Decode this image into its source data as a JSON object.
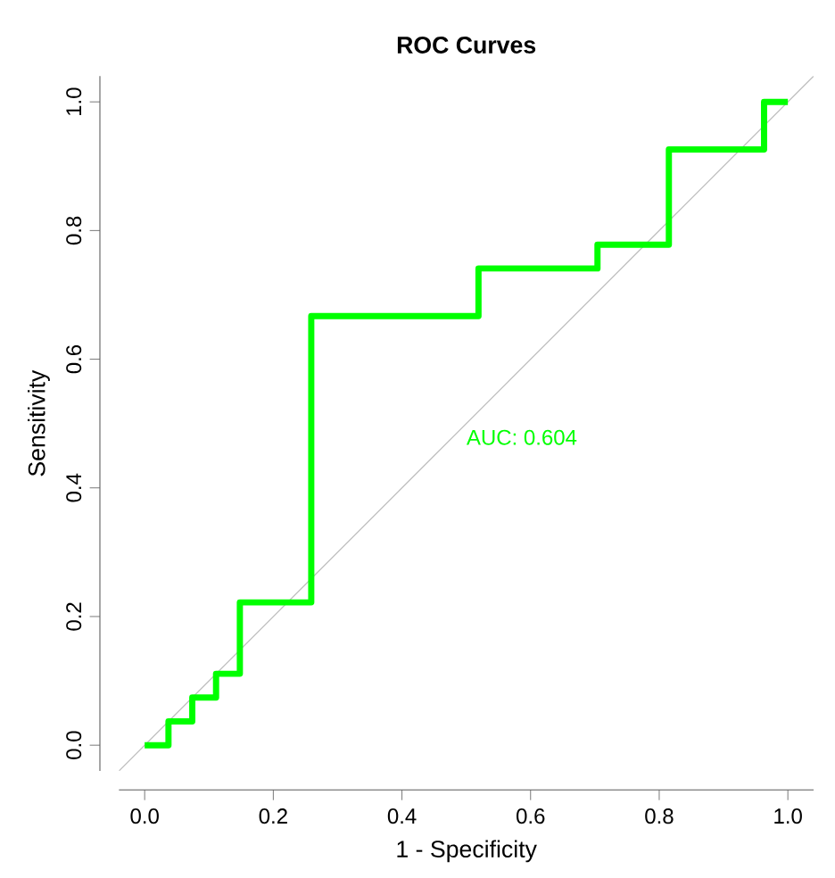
{
  "chart_data": {
    "type": "step",
    "title": "ROC Curves",
    "xlabel": "1 - Specificity",
    "ylabel": "Sensitivity",
    "series": [
      {
        "color": "#00ff00",
        "x": [
          0,
          0.037,
          0.074,
          0.111,
          0.148,
          0.259,
          0.519,
          0.704,
          0.815,
          0.963,
          1.0
        ],
        "values": [
          0,
          0.037,
          0.074,
          0.111,
          0.222,
          0.667,
          0.741,
          0.778,
          0.926,
          1.0,
          1.0
        ]
      },
      {
        "type": "line",
        "color": "#bebebe",
        "x": [
          -0.04,
          1.04
        ],
        "values": [
          -0.04,
          1.04
        ]
      }
    ],
    "annotations": [
      "AUC: 0.604"
    ],
    "xlim": [
      -0.04,
      1.04
    ],
    "ylim": [
      -0.04,
      1.04
    ],
    "xticks": [
      {
        "value": 0,
        "label": "0.0"
      },
      {
        "value": 0.2,
        "label": "0.2"
      },
      {
        "value": 0.4,
        "label": "0.4"
      },
      {
        "value": 0.6,
        "label": "0.6"
      },
      {
        "value": 0.8,
        "label": "0.8"
      },
      {
        "value": 1.0,
        "label": "1.0"
      }
    ],
    "yticks": [
      {
        "value": 0,
        "label": "0.0"
      },
      {
        "value": 0.2,
        "label": "0.2"
      },
      {
        "value": 0.4,
        "label": "0.4"
      },
      {
        "value": 0.6,
        "label": "0.6"
      },
      {
        "value": 0.8,
        "label": "0.8"
      },
      {
        "value": 1.0,
        "label": "1.0"
      }
    ],
    "grid": false
  }
}
